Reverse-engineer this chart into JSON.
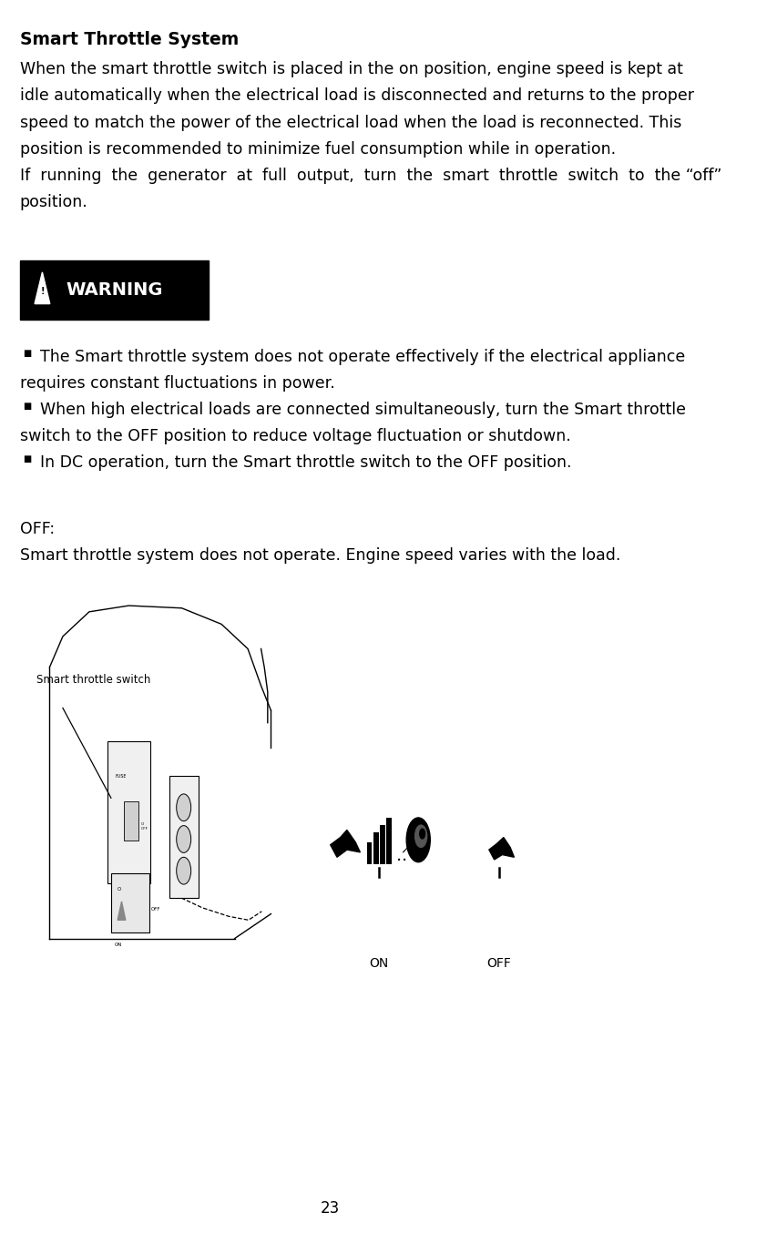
{
  "title": "Smart Throttle System",
  "para1_lines": [
    "When the smart throttle switch is placed in the on position, engine speed is kept at",
    "idle automatically when the electrical load is disconnected and returns to the proper",
    "speed to match the power of the electrical load when the load is reconnected. This",
    "position is recommended to minimize fuel consumption while in operation."
  ],
  "para2_lines": [
    "If  running  the  generator  at  full  output,  turn  the  smart  throttle  switch  to  the “off”",
    "position."
  ],
  "warning_label": "WARNING",
  "bullet1_lines": [
    "    The Smart throttle system does not operate effectively if the electrical appliance",
    "requires constant fluctuations in power."
  ],
  "bullet2_lines": [
    "    When high electrical loads are connected simultaneously, turn the Smart throttle",
    "switch to the OFF position to reduce voltage fluctuation or shutdown."
  ],
  "bullet3_lines": [
    "    In DC operation, turn the Smart throttle switch to the OFF position."
  ],
  "off_label": "OFF:",
  "off_desc": "Smart throttle system does not operate. Engine speed varies with the load.",
  "switch_label": "Smart throttle switch",
  "on_label": "ON",
  "off_switch_label": "OFF",
  "page_number": "23",
  "bg_color": "#ffffff",
  "text_color": "#000000",
  "warning_bg": "#000000",
  "warning_text": "#ffffff",
  "ml": 0.03,
  "fs_body": 12.5,
  "fs_title": 13.5,
  "lh": 0.0215
}
